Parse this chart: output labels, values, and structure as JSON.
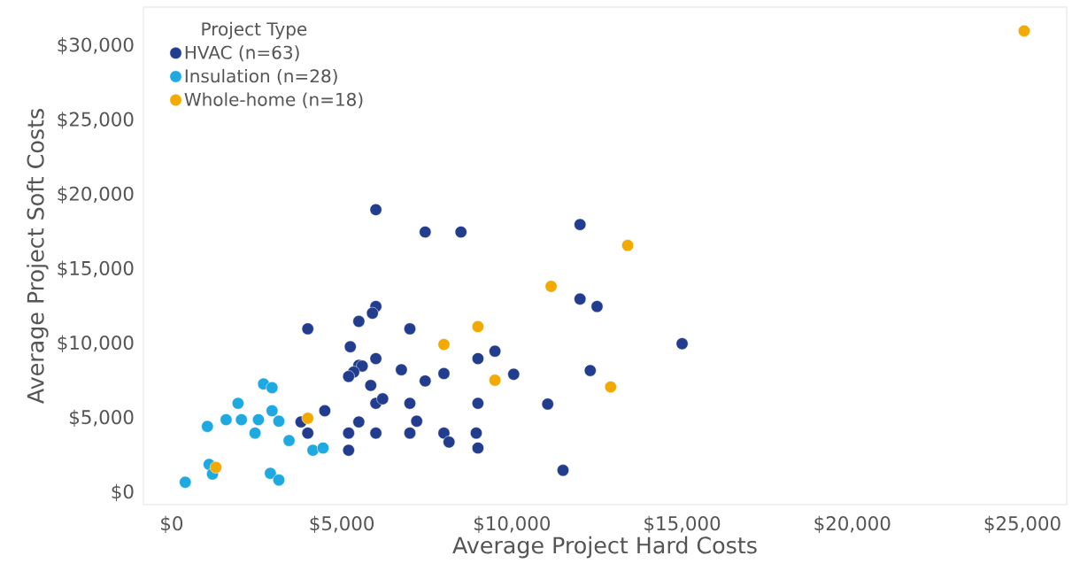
{
  "chart_data": {
    "type": "scatter",
    "xlabel": "Average Project Hard Costs",
    "ylabel": "Average Project Soft Costs",
    "legend_title": "Project Type",
    "legend": "top left",
    "grid": false,
    "xlim": [
      -830,
      26300
    ],
    "ylim": [
      -800,
      32600
    ],
    "xticks": [
      {
        "value": 0,
        "label": "$0"
      },
      {
        "value": 5000,
        "label": "$5,000"
      },
      {
        "value": 10000,
        "label": "$10,000"
      },
      {
        "value": 15000,
        "label": "$15,000"
      },
      {
        "value": 20000,
        "label": "$20,000"
      },
      {
        "value": 25000,
        "label": "$25,000"
      }
    ],
    "yticks": [
      {
        "value": 0,
        "label": "$0"
      },
      {
        "value": 5000,
        "label": "$5,000"
      },
      {
        "value": 10000,
        "label": "$10,000"
      },
      {
        "value": 15000,
        "label": "$15,000"
      },
      {
        "value": 20000,
        "label": "$20,000"
      },
      {
        "value": 25000,
        "label": "$25,000"
      },
      {
        "value": 30000,
        "label": "$30,000"
      }
    ],
    "series": [
      {
        "name": "HVAC (n=63)",
        "color": "#233d8e",
        "x": [
          6000,
          7450,
          8500,
          12000,
          12000,
          12500,
          15000,
          4000,
          6000,
          5900,
          5500,
          7000,
          5250,
          9500,
          6000,
          9000,
          5500,
          5600,
          5350,
          5200,
          6750,
          8000,
          7450,
          10050,
          12300,
          5850,
          6000,
          6200,
          7000,
          9000,
          11050,
          4500,
          3800,
          5500,
          7200,
          4000,
          5200,
          6000,
          7000,
          8000,
          8950,
          8150,
          9000,
          5200,
          11500
        ],
        "values": [
          19000,
          17500,
          17500,
          18000,
          13000,
          12500,
          10000,
          11000,
          12500,
          12050,
          11500,
          11000,
          9800,
          9500,
          9000,
          9000,
          8550,
          8500,
          8100,
          7800,
          8250,
          8000,
          7500,
          7950,
          8200,
          7200,
          6000,
          6300,
          6000,
          6000,
          5950,
          5500,
          4750,
          4750,
          4800,
          4000,
          4000,
          4000,
          4000,
          4000,
          4000,
          3400,
          3000,
          2850,
          1500
        ]
      },
      {
        "name": "Insulation (n=28)",
        "color": "#1ea9e1",
        "x": [
          2700,
          2950,
          1950,
          2950,
          1050,
          1600,
          2050,
          2550,
          3150,
          2450,
          3450,
          4150,
          4450,
          1100,
          1200,
          2900,
          3150,
          400
        ],
        "values": [
          7300,
          7050,
          6000,
          5500,
          4450,
          4900,
          4900,
          4900,
          4800,
          4000,
          3500,
          2850,
          3000,
          1900,
          1250,
          1300,
          850,
          700
        ]
      },
      {
        "name": "Whole-home (n=18)",
        "color": "#f2a900",
        "x": [
          25050,
          13400,
          11150,
          9000,
          8000,
          9500,
          12900,
          4000,
          1300
        ],
        "values": [
          31000,
          16600,
          13850,
          11150,
          9950,
          7550,
          7100,
          5000,
          1700
        ]
      }
    ]
  }
}
